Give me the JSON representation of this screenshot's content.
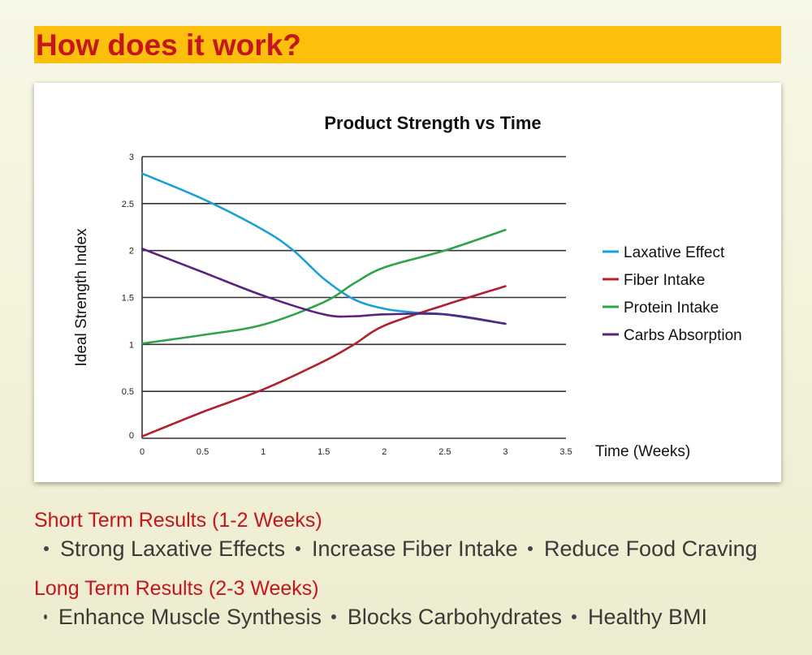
{
  "header": {
    "title": "How does it work?"
  },
  "colors": {
    "header_bg": "#fbbf0c",
    "accent_red": "#c4161c",
    "laxative": "#1aa0d6",
    "fiber": "#b21f2d",
    "protein": "#2ea44a",
    "carbs": "#5a237f"
  },
  "chart_data": {
    "type": "line",
    "title": "Product Strength vs Time",
    "xlabel": "Time (Weeks)",
    "ylabel": "Ideal Strength Index",
    "xlim": [
      0,
      3.5
    ],
    "ylim": [
      0,
      3
    ],
    "x_ticks": [
      "0",
      "0.5",
      "1",
      "1.5",
      "2",
      "2.5",
      "3",
      "3.5"
    ],
    "y_ticks": [
      "0",
      "0.5",
      "1",
      "1.5",
      "2",
      "2.5",
      "3"
    ],
    "grid": "horizontal",
    "legend_position": "right",
    "series": [
      {
        "name": "Laxative Effect",
        "color": "#1aa0d6",
        "x": [
          0,
          0.5,
          1,
          1.25,
          1.5,
          1.75,
          2,
          2.25,
          2.5,
          3
        ],
        "y": [
          2.82,
          2.55,
          2.22,
          2.0,
          1.7,
          1.48,
          1.38,
          1.34,
          1.32,
          1.22
        ]
      },
      {
        "name": "Fiber Intake",
        "color": "#b21f2d",
        "x": [
          0,
          0.5,
          1,
          1.5,
          1.75,
          2,
          2.5,
          3
        ],
        "y": [
          0.02,
          0.28,
          0.52,
          0.82,
          1.0,
          1.2,
          1.42,
          1.62
        ]
      },
      {
        "name": "Protein Intake",
        "color": "#2ea44a",
        "x": [
          0,
          0.5,
          1,
          1.5,
          1.75,
          2,
          2.5,
          3
        ],
        "y": [
          1.01,
          1.1,
          1.21,
          1.45,
          1.65,
          1.82,
          2.0,
          2.22
        ]
      },
      {
        "name": "Carbs Absorption",
        "color": "#5a237f",
        "x": [
          0,
          0.5,
          1,
          1.5,
          1.75,
          2,
          2.5,
          3
        ],
        "y": [
          2.02,
          1.77,
          1.52,
          1.32,
          1.3,
          1.32,
          1.32,
          1.22
        ]
      }
    ]
  },
  "short_term": {
    "heading": "Short Term Results (1-2 Weeks)",
    "items": [
      "Strong Laxative Effects",
      "Increase Fiber Intake",
      "Reduce Food Craving"
    ]
  },
  "long_term": {
    "heading": "Long Term Results (2-3 Weeks)",
    "items": [
      "Enhance Muscle Synthesis",
      "Blocks Carbohydrates",
      "Healthy BMI"
    ]
  }
}
